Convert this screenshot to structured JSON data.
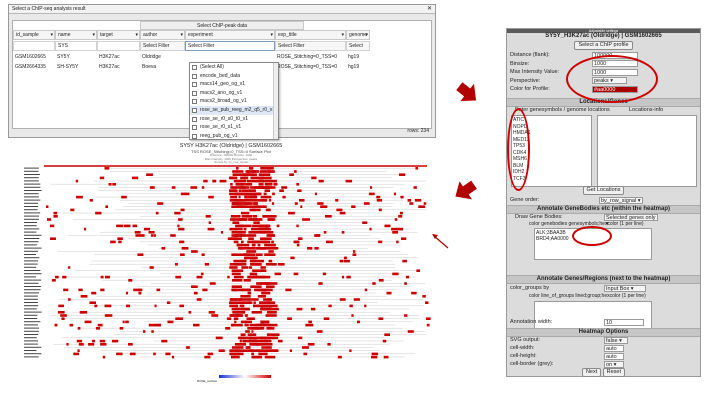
{
  "window": {
    "title": "Select a ChIP-seq analysis result",
    "close": "✕"
  },
  "grid": {
    "group_header": "Select ChIP-peak data",
    "columns": [
      {
        "label": "id_sample",
        "filter": ""
      },
      {
        "label": "name",
        "filter": "SYS"
      },
      {
        "label": "target",
        "filter": ""
      },
      {
        "label": "author",
        "filter": "Select Filter"
      },
      {
        "label": "experiment",
        "filter": "Select Filter"
      },
      {
        "label": "exp_title",
        "filter": "Select Filter"
      },
      {
        "label": "genome",
        "filter": "Select"
      }
    ],
    "rows": [
      [
        "GSM1602665",
        "SY5Y",
        "H3K27ac",
        "Oldridge",
        "",
        "ROSE_Stitching=0_TSS=0",
        "hg19"
      ],
      [
        "GSM2664335",
        "SH-SY5Y",
        "H3K27ac",
        "Boeva",
        "",
        "ROSE_Stitching=0_TSS=0",
        "hg19"
      ]
    ],
    "dropdown": [
      "(Select All)",
      "encode_bed_data",
      "macs14_geo_og_v1",
      "macs2_ano_og_v1",
      "macs2_broad_og_v1",
      "rose_se_pub_reeg_m2_q5_r0_v1",
      "rose_se_r0_s0_t0_v1",
      "rose_se_r0_s1_v1",
      "reeg_pub_og_v1"
    ],
    "rows_label": "rows: 234"
  },
  "heatmap": {
    "title": "SY5Y H3K27ac (Oldridge) | GSM1602665",
    "subtitle": "TSS ROSE_Stitching=0_TSS=0 Surface Plot",
    "tiny": [
      "Distance: 100000 Binsize: 1000",
      "Max Intensity: 1000 Perspective: peaks",
      "Sorted by: by_row_signal"
    ],
    "legend_label": "ROSE_surface",
    "colors": {
      "peak": "#cc0000",
      "line": "#cccccc",
      "accent": "#1b2fd0"
    }
  },
  "panel": {
    "top": "Adjustable settings",
    "title": "SY5Y_H3K27ac (Oldridge) | GSM1602665",
    "select_btn": "Select a ChIP profile",
    "fields": [
      {
        "label": "Distance (flank):",
        "value": "100000"
      },
      {
        "label": "Binsize:",
        "value": "1000"
      },
      {
        "label": "Max Intensity Value:",
        "value": "1000"
      },
      {
        "label": "Perspective:",
        "value": "peaks"
      },
      {
        "label": "Color for Profile:",
        "value": "#aa0000"
      }
    ],
    "loc_title": "Locations/Genes",
    "loc_label": "Enter genesymbols / genome locations",
    "loc_info": "Locations-info",
    "genes": [
      "ATIC",
      "NOPD",
      "HMDA1",
      "MED12",
      "TP53",
      "CDK4",
      "MSH6",
      "BLM",
      "IDH2",
      "TCF3"
    ],
    "get_loc": "Get Locations",
    "gene_order_label": "Gene order:",
    "gene_order_val": "by_row_signal",
    "annot_body_title": "Annotate GeneBodies etc (within the heatmap)",
    "draw_label": "Draw Gene Bodies:",
    "draw_val": "Selected genes only",
    "color_label": "color genebodies genesymbols;hexcolor (1 per line)",
    "color_lines": [
      "ALK;3BAA3B",
      "BRD4;AA0000"
    ],
    "annot_reg_title": "Annotate Genes/Regions (next to the heatmap)",
    "color_groups_label": "color_groups by",
    "color_groups_val": "Input Box",
    "color_line_label": "color line_of_groups lined;group;hexcolor (1 per line)",
    "annot_width_label": "Annotation width:",
    "annot_width_val": "10",
    "hm_opts_title": "Heatmap Options",
    "opts": [
      {
        "label": "SVG output:",
        "value": "false"
      },
      {
        "label": "cell-width:",
        "value": "auto"
      },
      {
        "label": "cell-height:",
        "value": "auto"
      },
      {
        "label": "cell-border (grey):",
        "value": "on"
      }
    ],
    "next": "Next",
    "reset": "Reset"
  }
}
